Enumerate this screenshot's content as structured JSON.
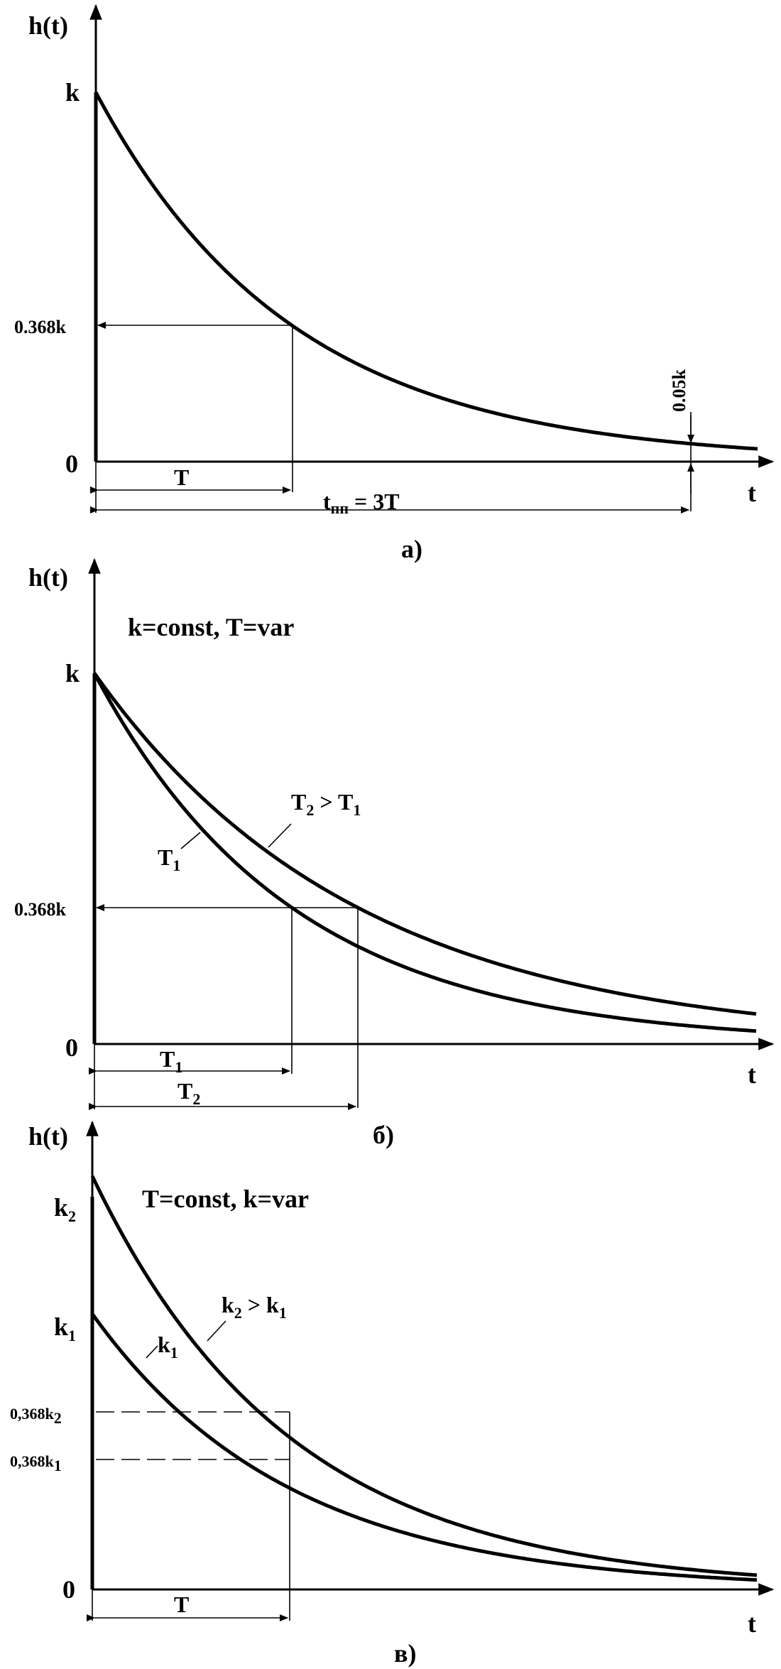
{
  "chart_data": [
    {
      "type": "line",
      "panel_label": "а)",
      "ylabel": "h(t)",
      "xlabel": "t",
      "y_ticks": [
        "k",
        "0.368k",
        "0"
      ],
      "series": [
        {
          "x": [
            0,
            0.5,
            1,
            1.5,
            2,
            2.5,
            3,
            3.4
          ],
          "values": [
            1.0,
            0.607,
            0.368,
            0.223,
            0.135,
            0.082,
            0.05,
            0.033
          ]
        }
      ],
      "annotations": {
        "T": "T",
        "tpp_main": "t",
        "tpp_sub": "пп",
        "tpp_rest": " = 3T",
        "level": "0.05k"
      }
    },
    {
      "type": "line",
      "panel_label": "б)",
      "ylabel": "h(t)",
      "xlabel": "t",
      "condition": "k=const, T=var",
      "y_ticks": [
        "k",
        "0.368k",
        "0"
      ],
      "series": [
        {
          "name_main": "T",
          "name_sub": "1",
          "x": [
            0,
            0.5,
            1,
            2,
            3
          ],
          "values": [
            1.0,
            0.607,
            0.368,
            0.135,
            0.05
          ]
        },
        {
          "name_main": "T",
          "name_sub": "2",
          "x": [
            0,
            0.5,
            1,
            2,
            3
          ],
          "values": [
            1.0,
            0.703,
            0.494,
            0.244,
            0.12
          ]
        }
      ],
      "annotations": {
        "T1_main": "T",
        "T1_sub": "1",
        "T2_main": "T",
        "T2_sub": "2",
        "cmp_a": "T",
        "cmp_a_sub": "2",
        "cmp_op": " > ",
        "cmp_b": "T",
        "cmp_b_sub": "1"
      }
    },
    {
      "type": "line",
      "panel_label": "в)",
      "ylabel": "h(t)",
      "xlabel": "t",
      "condition": "T=const, k=var",
      "y_ticks": {
        "k2_main": "k",
        "k2_sub": "2",
        "k1_main": "k",
        "k1_sub": "1",
        "lvl2_main": "0,368k",
        "lvl2_sub": "2",
        "lvl1_main": "0,368k",
        "lvl1_sub": "1",
        "zero": "0"
      },
      "series": [
        {
          "name_main": "k",
          "name_sub": "1",
          "x": [
            0,
            0.5,
            1,
            2,
            3
          ],
          "values": [
            1.0,
            0.607,
            0.368,
            0.135,
            0.05
          ]
        },
        {
          "name_main": "k",
          "name_sub": "2",
          "x": [
            0,
            0.5,
            1,
            2,
            3
          ],
          "values": [
            1.5,
            0.91,
            0.552,
            0.203,
            0.075
          ]
        }
      ],
      "annotations": {
        "T": "T",
        "cmp_a": "k",
        "cmp_a_sub": "2",
        "cmp_op": " > ",
        "cmp_b": "k",
        "cmp_b_sub": "1"
      }
    }
  ]
}
